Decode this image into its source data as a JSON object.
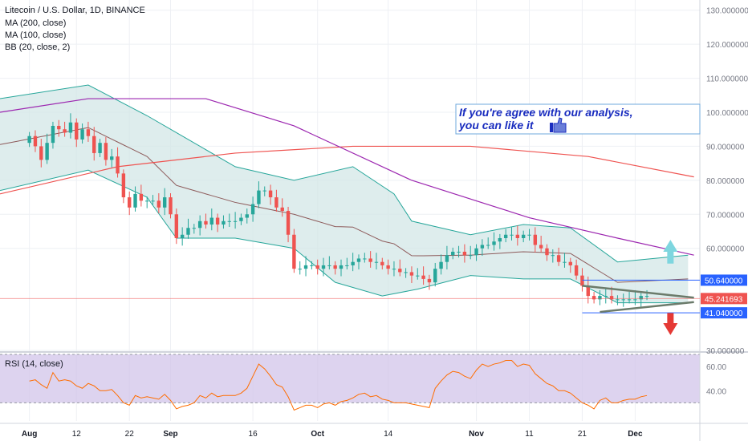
{
  "header": {
    "symbol": "Litecoin / U.S. Dollar, 1D, BINANCE",
    "indicators": [
      "MA (200, close)",
      "MA (100, close)",
      "BB (20, close, 2)"
    ],
    "rsi_label": "RSI (14, close)"
  },
  "annotation": {
    "line1": "If you're agree with our analysis,",
    "line2": "you can like it",
    "icon": "thumbs-up-icon"
  },
  "price_labels": {
    "resistance": "50.640000",
    "last": "45.241693",
    "support": "41.040000"
  },
  "colors": {
    "up": "#26a69a",
    "down": "#ef5350",
    "ma200": "#ef5350",
    "ma100": "#9c27b0",
    "bb": "#26a69a",
    "rsi": "#ff6d00",
    "rsi_band": "#d1c4e9",
    "annotation_text": "#1a2dbf",
    "arrow_up": "#7ed6df",
    "arrow_down": "#e53935",
    "level": "#2962ff"
  },
  "chart_data": {
    "type": "candlestick",
    "title": "Litecoin / U.S. Dollar, 1D, BINANCE",
    "y_ticks": [
      "130.000000",
      "120.000000",
      "110.000000",
      "100.000000",
      "90.000000",
      "80.000000",
      "70.000000",
      "60.000000",
      "30.000000"
    ],
    "ylim": [
      30,
      133
    ],
    "x_ticks": [
      "Aug",
      "12",
      "22",
      "Sep",
      "16",
      "Oct",
      "14",
      "Nov",
      "11",
      "21",
      "Dec"
    ],
    "x_tick_days": [
      0,
      8,
      17,
      24,
      38,
      49,
      61,
      76,
      85,
      94,
      103
    ],
    "xlim": [
      -5,
      114
    ],
    "closes": [
      93,
      90,
      86,
      91,
      96,
      95,
      94,
      97,
      92,
      95,
      93,
      88,
      91,
      86,
      87,
      82,
      75,
      72,
      76,
      74,
      74,
      74,
      72,
      75,
      70,
      63,
      64,
      66,
      66,
      68,
      67,
      69,
      67,
      68,
      68,
      68,
      69,
      70,
      73,
      77,
      77,
      75,
      72,
      71,
      64,
      54,
      54,
      55,
      55,
      54,
      55,
      55,
      54,
      55,
      55,
      56,
      57,
      57,
      56,
      56,
      55,
      54,
      54,
      53,
      53,
      52,
      52,
      51,
      50,
      54,
      56,
      58,
      59,
      59,
      58,
      58,
      60,
      61,
      61,
      62,
      63,
      64,
      64,
      63,
      64,
      64,
      61,
      60,
      58,
      58,
      56,
      56,
      55,
      52,
      49,
      46,
      45,
      46,
      46,
      45,
      45,
      45,
      45,
      45,
      46,
      46
    ],
    "ma200": {
      "from": 0,
      "to": 113,
      "points": [
        [
          -5,
          76
        ],
        [
          15,
          84
        ],
        [
          35,
          88
        ],
        [
          55,
          90
        ],
        [
          75,
          90
        ],
        [
          95,
          87
        ],
        [
          113,
          81
        ]
      ]
    },
    "ma100": {
      "from": -5,
      "to": 113,
      "points": [
        [
          -5,
          100
        ],
        [
          10,
          104
        ],
        [
          30,
          104
        ],
        [
          45,
          96
        ],
        [
          65,
          80
        ],
        [
          85,
          69
        ],
        [
          100,
          63
        ],
        [
          113,
          58
        ]
      ]
    },
    "bb_upper": [
      [
        -5,
        104
      ],
      [
        10,
        108
      ],
      [
        20,
        99
      ],
      [
        25,
        94
      ],
      [
        35,
        84
      ],
      [
        45,
        80
      ],
      [
        55,
        84
      ],
      [
        62,
        76
      ],
      [
        65,
        68
      ],
      [
        75,
        64
      ],
      [
        84,
        67
      ],
      [
        92,
        66
      ],
      [
        100,
        56
      ],
      [
        112,
        58
      ]
    ],
    "bb_lower": [
      [
        -5,
        77
      ],
      [
        10,
        83
      ],
      [
        20,
        75
      ],
      [
        25,
        63
      ],
      [
        35,
        63
      ],
      [
        45,
        60
      ],
      [
        52,
        50
      ],
      [
        60,
        46
      ],
      [
        66,
        48
      ],
      [
        75,
        52
      ],
      [
        84,
        51
      ],
      [
        92,
        51
      ],
      [
        100,
        44
      ],
      [
        112,
        44
      ]
    ],
    "levels": [
      50.64,
      41.04
    ],
    "rsi": {
      "label": "RSI (14, close)",
      "y_ticks": [
        "60.00",
        "40.00"
      ],
      "ylim": [
        15,
        70
      ],
      "band": [
        30,
        70
      ],
      "values": [
        48,
        49,
        45,
        42,
        55,
        48,
        49,
        48,
        44,
        42,
        46,
        44,
        40,
        40,
        41,
        36,
        30,
        28,
        36,
        34,
        35,
        34,
        33,
        37,
        32,
        25,
        27,
        28,
        30,
        36,
        34,
        38,
        35,
        36,
        36,
        36,
        38,
        42,
        52,
        62,
        58,
        52,
        45,
        43,
        35,
        24,
        26,
        28,
        28,
        26,
        29,
        30,
        28,
        31,
        32,
        34,
        37,
        38,
        35,
        36,
        33,
        32,
        30,
        30,
        30,
        29,
        28,
        27,
        26,
        42,
        48,
        53,
        56,
        55,
        52,
        50,
        57,
        62,
        60,
        62,
        63,
        65,
        65,
        60,
        62,
        61,
        54,
        50,
        46,
        44,
        40,
        40,
        38,
        34,
        30,
        28,
        25,
        32,
        34,
        30,
        30,
        32,
        33,
        33,
        35,
        36
      ]
    }
  }
}
